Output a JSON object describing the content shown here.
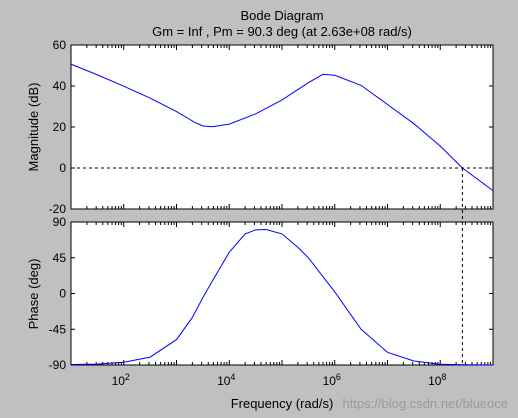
{
  "chart_data": {
    "type": "line",
    "title": "Bode Diagram",
    "subtitle": "Gm = Inf ,  Pm = 90.3 deg (at 2.63e+08 rad/s)",
    "xlabel": "Frequency  (rad/s)",
    "x_scale": "log",
    "xlim": [
      10,
      1000000000.0
    ],
    "x_ticks": [
      {
        "value": 100,
        "base": "10",
        "exp": "2"
      },
      {
        "value": 10000,
        "base": "10",
        "exp": "4"
      },
      {
        "value": 1000000,
        "base": "10",
        "exp": "6"
      },
      {
        "value": 100000000,
        "base": "10",
        "exp": "8"
      }
    ],
    "crossover_frequency": 263000000,
    "watermark": "https://blog.csdn.net/blueoce",
    "line_color": "#0000ff",
    "background_color": "#c0c0c0",
    "axes_color": "#ffffff",
    "plots": [
      {
        "name": "magnitude",
        "ylabel": "Magnitude (dB)",
        "ylim": [
          -20,
          60
        ],
        "yticks": [
          -20,
          0,
          20,
          40,
          60
        ],
        "reference_line_y": 0,
        "x": [
          10,
          31.6,
          100,
          316,
          1000,
          1500,
          2200,
          3200,
          4700,
          10000,
          31600,
          100000,
          316000,
          600000,
          1000000,
          3160000,
          10000000,
          31600000,
          100000000,
          263000000,
          1000000000
        ],
        "y": [
          50.7,
          45.4,
          39.9,
          34.1,
          27.5,
          24.9,
          22.3,
          20.5,
          20.1,
          21.4,
          26.4,
          33.2,
          41.6,
          45.7,
          45.2,
          40.3,
          31.0,
          21.6,
          10.7,
          0.0,
          -11.0
        ]
      },
      {
        "name": "phase",
        "ylabel": "Phase (deg)",
        "ylim": [
          -90,
          90
        ],
        "yticks": [
          -90,
          -45,
          0,
          45,
          90
        ],
        "x": [
          10,
          31.6,
          100,
          316,
          1000,
          2000,
          3160,
          5000,
          10000,
          20000,
          31600,
          50000,
          100000,
          200000,
          316000,
          1000000,
          3160000,
          10000000,
          31600000,
          100000000,
          316000000,
          1000000000
        ],
        "y": [
          -89.4,
          -88.9,
          -86.5,
          -80.0,
          -58.0,
          -30.0,
          -5.0,
          18.0,
          52.0,
          75.0,
          80.0,
          80.5,
          75.0,
          58.0,
          45.0,
          2.0,
          -45.0,
          -74.0,
          -85.0,
          -89.0,
          -89.8,
          -90.0
        ]
      }
    ]
  }
}
